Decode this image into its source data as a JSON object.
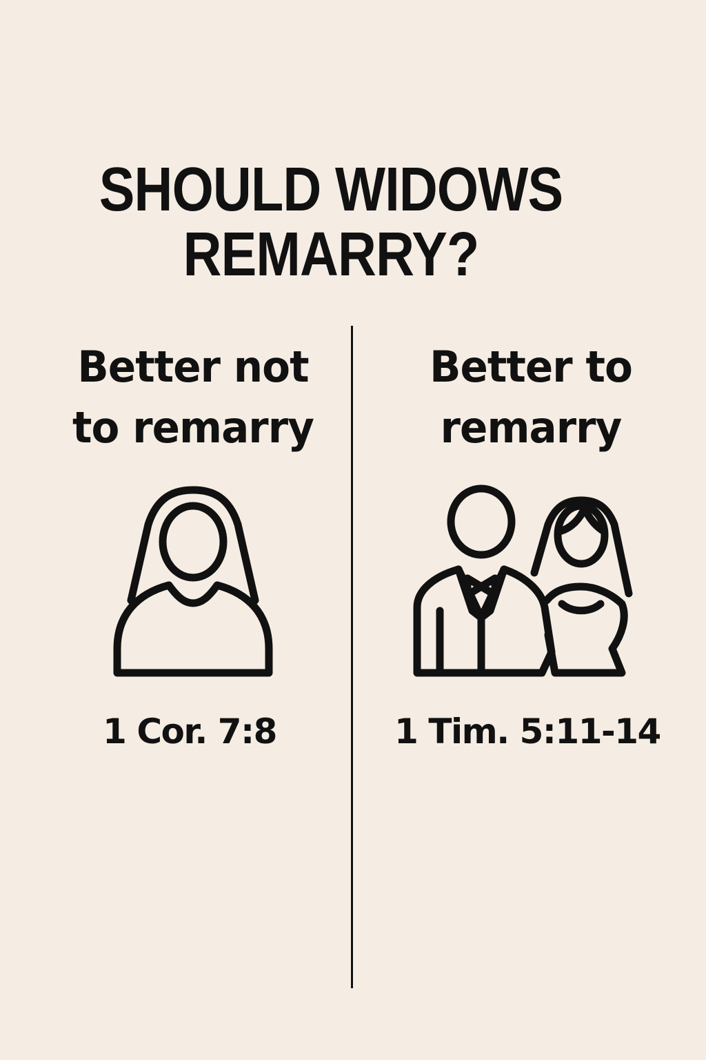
{
  "title": {
    "line1": "SHOULD WIDOWS",
    "line2": "REMARRY?"
  },
  "left": {
    "heading": "Better not\nto remarry",
    "icon": "widow-veil-icon",
    "reference": "1 Cor. 7:8"
  },
  "right": {
    "heading": "Better to\nremarry",
    "icon": "bride-and-groom-icon",
    "reference": "1 Tim. 5:11-14"
  },
  "colors": {
    "background": "#f5ede3",
    "ink": "#111111"
  }
}
